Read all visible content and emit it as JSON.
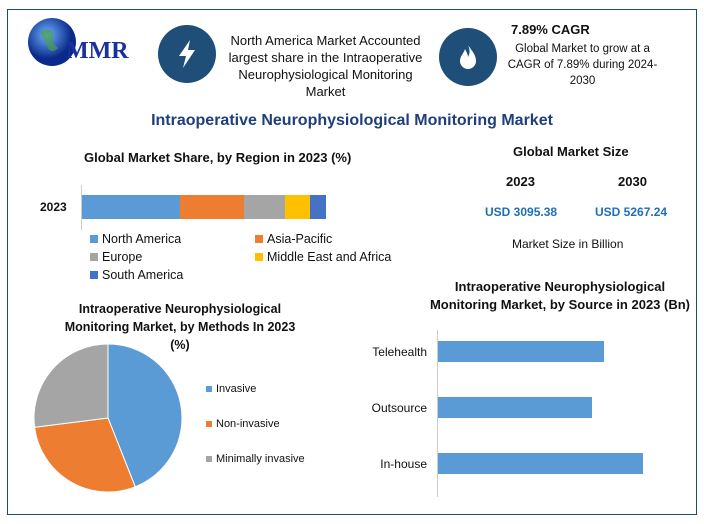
{
  "logo": {
    "text": "MMR"
  },
  "header": {
    "info1": "North America Market Accounted largest share in the Intraoperative Neurophysiological Monitoring Market",
    "cagr_title": "7.89% CAGR",
    "cagr_text": "Global Market to grow at a CAGR of 7.89% during 2024-2030",
    "icons": [
      "lightning-icon",
      "flame-icon"
    ]
  },
  "title": "Intraoperative Neurophysiological Monitoring Market",
  "market_size": {
    "title": "Global Market Size",
    "year1": "2023",
    "year2": "2030",
    "value1": "USD 3095.38",
    "value2": "USD 5267.24",
    "unit": "Market Size in Billion",
    "accent": "#1f6fb5"
  },
  "chart_data": [
    {
      "type": "bar",
      "stacked": true,
      "orientation": "horizontal",
      "title": "Global Market Share, by Region in 2023 (%)",
      "categories": [
        "2023"
      ],
      "series": [
        {
          "name": "North America",
          "values": [
            40.2
          ],
          "color": "#5b9bd5"
        },
        {
          "name": "Asia-Pacific",
          "values": [
            26.2
          ],
          "color": "#ed7d31"
        },
        {
          "name": "Europe",
          "values": [
            16.8
          ],
          "color": "#a5a5a5"
        },
        {
          "name": "Middle East and Africa",
          "values": [
            10.2
          ],
          "color": "#ffc000"
        },
        {
          "name": "South America",
          "values": [
            6.6
          ],
          "color": "#4472c4"
        }
      ],
      "legend": "bottom"
    },
    {
      "type": "pie",
      "title": "Intraoperative Neurophysiological Monitoring Market, by Methods In 2023 (%)",
      "labels": [
        "Invasive",
        "Non-invasive",
        "Minimally invasive"
      ],
      "values": [
        44,
        29,
        27
      ],
      "colors": [
        "#5b9bd5",
        "#ed7d31",
        "#a5a5a5"
      ],
      "legend": "right"
    },
    {
      "type": "bar",
      "orientation": "horizontal",
      "title": "Intraoperative Neurophysiological Monitoring Market, by Source in 2023 (Bn)",
      "categories": [
        "Telehealth",
        "Outsource",
        "In-house"
      ],
      "values": [
        0.81,
        0.75,
        1.0
      ],
      "color": "#5b9bd5"
    }
  ]
}
